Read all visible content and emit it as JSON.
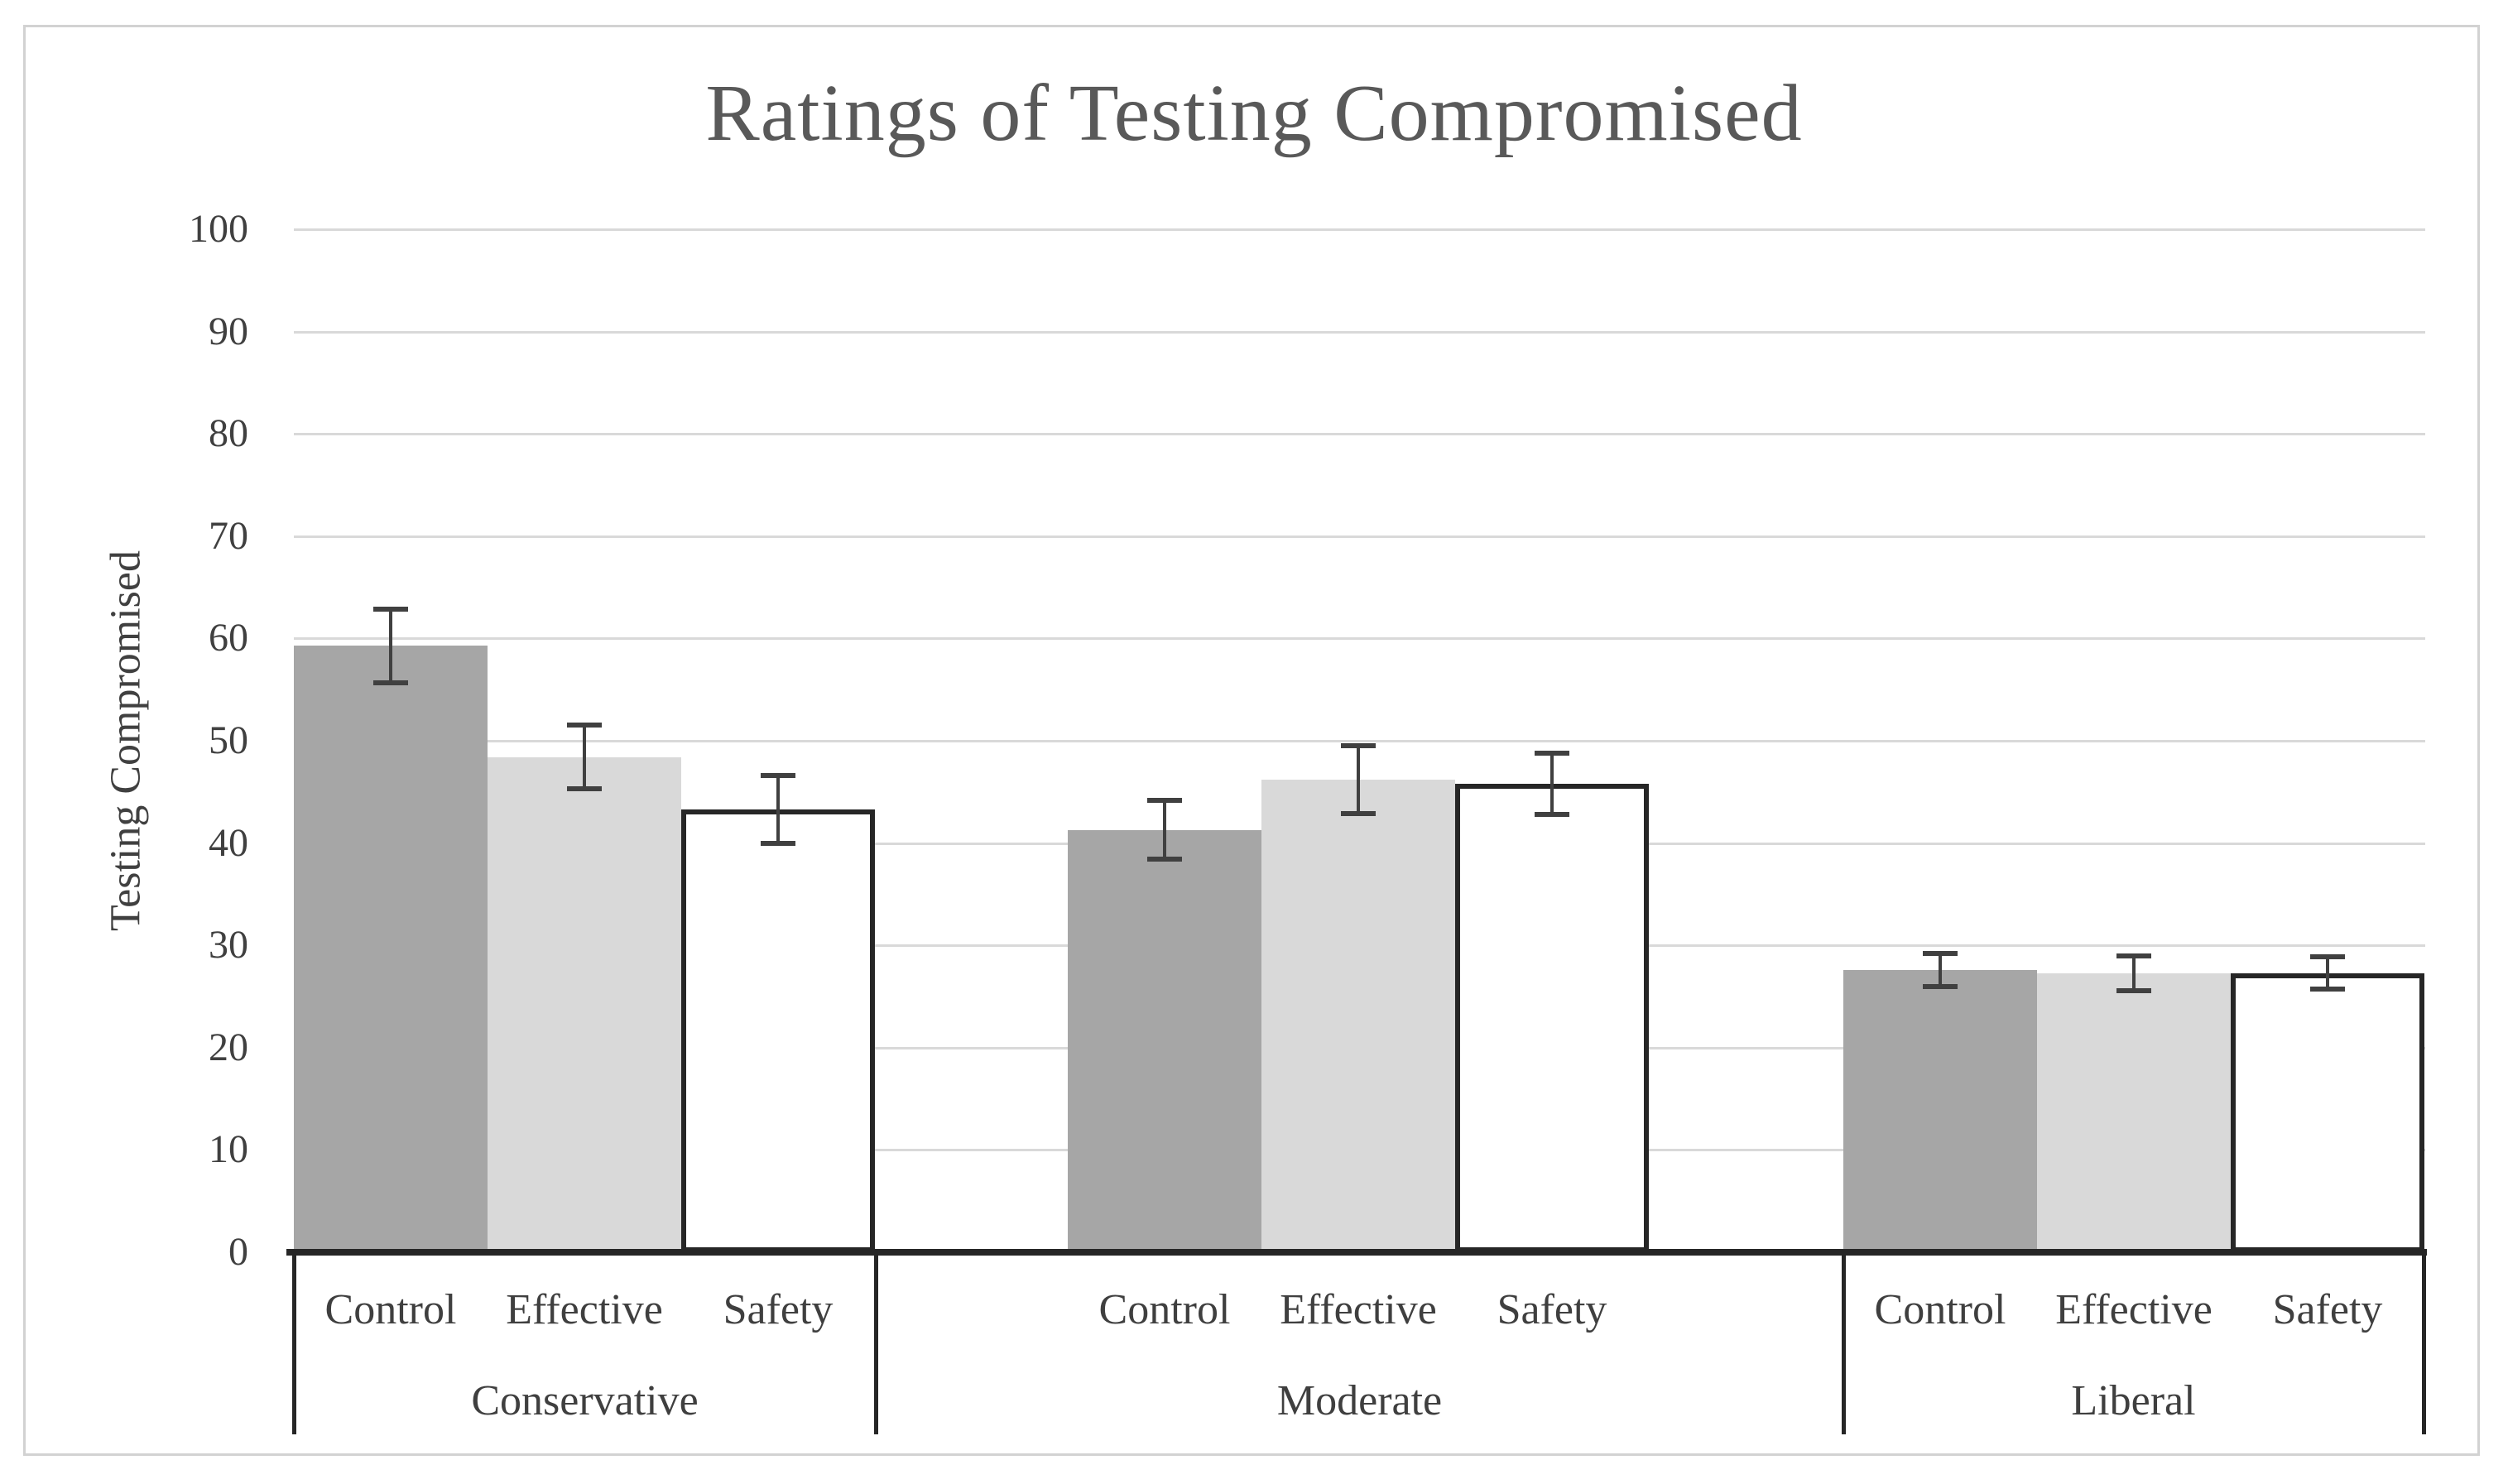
{
  "figure": {
    "title": "Ratings of Testing Compromised"
  },
  "chart_data": {
    "type": "bar",
    "title": "Ratings of Testing Compromised",
    "xlabel": "",
    "ylabel": "Testing Compromised",
    "ylim": [
      0,
      100
    ],
    "ytick_step": 10,
    "ytick_labels": [
      "0",
      "10",
      "20",
      "30",
      "40",
      "50",
      "60",
      "70",
      "80",
      "90",
      "100"
    ],
    "grid": true,
    "legend_position": "none",
    "error_bars": true,
    "categories": [
      "Conservative",
      "Moderate",
      "Liberal"
    ],
    "conditions": [
      "Control",
      "Effective",
      "Safety"
    ],
    "series": [
      {
        "name": "Control",
        "values": [
          59.3,
          41.3,
          27.6
        ],
        "errors": [
          3.6,
          2.9,
          1.6
        ]
      },
      {
        "name": "Effective",
        "values": [
          48.4,
          46.2,
          27.3
        ],
        "errors": [
          3.1,
          3.3,
          1.7
        ]
      },
      {
        "name": "Safety",
        "values": [
          43.3,
          45.8,
          27.3
        ],
        "errors": [
          3.3,
          3.0,
          1.6
        ]
      }
    ],
    "bar_styles": [
      {
        "name": "Control",
        "fill": "#a6a6a6",
        "border": "none"
      },
      {
        "name": "Effective",
        "fill": "#d9d9d9",
        "border": "none"
      },
      {
        "name": "Safety",
        "fill": "#ffffff",
        "border": "#262626"
      }
    ],
    "colors": {
      "gridline": "#d9d9d9",
      "axis": "#262626",
      "error_bar": "#404040",
      "tick_text": "#404040",
      "title_text": "#595959",
      "figure_border": "#d2d2d2"
    }
  }
}
